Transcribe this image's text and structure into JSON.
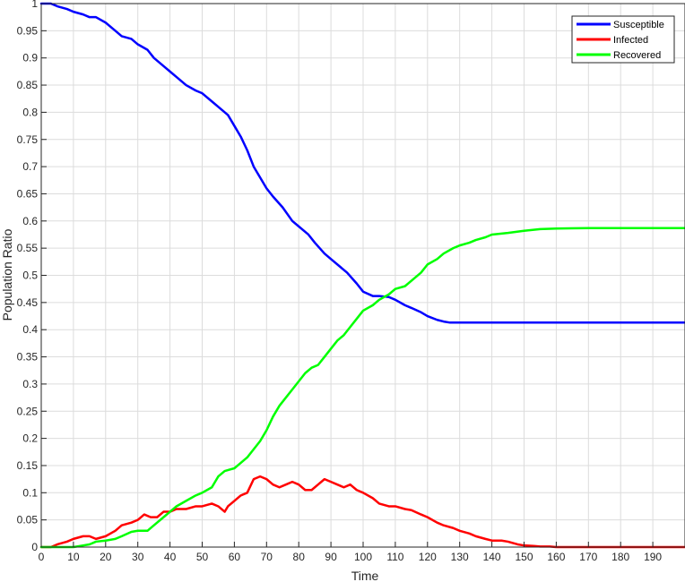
{
  "chart_data": {
    "type": "line",
    "title": "",
    "xlabel": "Time",
    "ylabel": "Population Ratio",
    "xlim": [
      0,
      200
    ],
    "ylim": [
      0,
      1
    ],
    "xticks": [
      0,
      10,
      20,
      30,
      40,
      50,
      60,
      70,
      80,
      90,
      100,
      110,
      120,
      130,
      140,
      150,
      160,
      170,
      180,
      190
    ],
    "yticks": [
      0,
      0.05,
      0.1,
      0.15,
      0.2,
      0.25,
      0.3,
      0.35,
      0.4,
      0.45,
      0.5,
      0.55,
      0.6,
      0.65,
      0.7,
      0.75,
      0.8,
      0.85,
      0.9,
      0.95,
      1
    ],
    "xtick_labels": [
      "0",
      "10",
      "20",
      "30",
      "40",
      "50",
      "60",
      "70",
      "80",
      "90",
      "100",
      "110",
      "120",
      "130",
      "140",
      "150",
      "160",
      "170",
      "180",
      "190"
    ],
    "ytick_labels": [
      "0",
      "0.05",
      "0.1",
      "0.15",
      "0.2",
      "0.25",
      "0.3",
      "0.35",
      "0.4",
      "0.45",
      "0.5",
      "0.55",
      "0.6",
      "0.65",
      "0.7",
      "0.75",
      "0.8",
      "0.85",
      "0.9",
      "0.95",
      "1"
    ],
    "grid": true,
    "legend_position": "top-right",
    "series": [
      {
        "name": "Susceptible",
        "color": "#0000ff",
        "x": [
          0,
          3,
          5,
          8,
          10,
          13,
          15,
          17,
          20,
          23,
          25,
          28,
          30,
          33,
          35,
          38,
          40,
          42,
          45,
          48,
          50,
          53,
          55,
          58,
          60,
          62,
          64,
          66,
          68,
          70,
          72,
          75,
          78,
          80,
          83,
          85,
          88,
          90,
          93,
          95,
          98,
          100,
          103,
          105,
          108,
          110,
          113,
          115,
          118,
          120,
          123,
          125,
          127,
          130,
          140,
          150,
          160,
          170,
          180,
          190,
          200
        ],
        "y": [
          1,
          1,
          0.995,
          0.99,
          0.985,
          0.98,
          0.975,
          0.975,
          0.965,
          0.95,
          0.94,
          0.935,
          0.925,
          0.915,
          0.9,
          0.885,
          0.875,
          0.865,
          0.85,
          0.84,
          0.835,
          0.82,
          0.81,
          0.795,
          0.775,
          0.755,
          0.73,
          0.7,
          0.68,
          0.66,
          0.645,
          0.625,
          0.6,
          0.59,
          0.575,
          0.56,
          0.54,
          0.53,
          0.515,
          0.505,
          0.485,
          0.47,
          0.462,
          0.462,
          0.46,
          0.455,
          0.445,
          0.44,
          0.432,
          0.425,
          0.418,
          0.415,
          0.413,
          0.413,
          0.413,
          0.413,
          0.413,
          0.413,
          0.413,
          0.413,
          0.413
        ]
      },
      {
        "name": "Infected",
        "color": "#ff0000",
        "x": [
          0,
          3,
          5,
          8,
          10,
          13,
          15,
          17,
          20,
          23,
          25,
          28,
          30,
          32,
          34,
          36,
          38,
          40,
          42,
          45,
          48,
          50,
          53,
          55,
          57,
          58,
          60,
          62,
          64,
          66,
          68,
          70,
          72,
          74,
          76,
          78,
          80,
          82,
          84,
          86,
          88,
          90,
          92,
          94,
          96,
          98,
          100,
          103,
          105,
          108,
          110,
          113,
          115,
          118,
          120,
          123,
          125,
          128,
          130,
          133,
          135,
          138,
          140,
          143,
          145,
          148,
          150,
          153,
          155,
          158,
          160,
          170,
          180,
          190,
          200
        ],
        "y": [
          0,
          0,
          0.005,
          0.01,
          0.015,
          0.02,
          0.02,
          0.015,
          0.02,
          0.03,
          0.04,
          0.045,
          0.05,
          0.06,
          0.055,
          0.055,
          0.065,
          0.065,
          0.07,
          0.07,
          0.075,
          0.075,
          0.08,
          0.075,
          0.065,
          0.075,
          0.085,
          0.095,
          0.1,
          0.125,
          0.13,
          0.125,
          0.115,
          0.11,
          0.115,
          0.12,
          0.115,
          0.105,
          0.105,
          0.115,
          0.125,
          0.12,
          0.115,
          0.11,
          0.115,
          0.105,
          0.1,
          0.09,
          0.08,
          0.075,
          0.075,
          0.07,
          0.068,
          0.06,
          0.055,
          0.045,
          0.04,
          0.035,
          0.03,
          0.025,
          0.02,
          0.015,
          0.012,
          0.012,
          0.01,
          0.005,
          0.003,
          0.002,
          0.001,
          0.001,
          0,
          0,
          0,
          0,
          0
        ]
      },
      {
        "name": "Recovered",
        "color": "#00ff00",
        "x": [
          0,
          5,
          10,
          13,
          15,
          17,
          20,
          23,
          25,
          28,
          30,
          33,
          35,
          38,
          40,
          42,
          45,
          48,
          50,
          53,
          55,
          57,
          60,
          62,
          64,
          66,
          68,
          70,
          72,
          74,
          76,
          78,
          80,
          82,
          84,
          86,
          88,
          90,
          92,
          94,
          96,
          98,
          100,
          103,
          105,
          108,
          110,
          113,
          115,
          118,
          120,
          123,
          125,
          128,
          130,
          133,
          135,
          138,
          140,
          145,
          150,
          155,
          160,
          170,
          180,
          190,
          200
        ],
        "y": [
          0,
          0,
          0,
          0.003,
          0.005,
          0.01,
          0.012,
          0.015,
          0.02,
          0.028,
          0.03,
          0.03,
          0.04,
          0.055,
          0.065,
          0.075,
          0.085,
          0.095,
          0.1,
          0.11,
          0.13,
          0.14,
          0.145,
          0.155,
          0.165,
          0.18,
          0.195,
          0.215,
          0.24,
          0.26,
          0.275,
          0.29,
          0.305,
          0.32,
          0.33,
          0.335,
          0.35,
          0.365,
          0.38,
          0.39,
          0.405,
          0.42,
          0.435,
          0.445,
          0.455,
          0.465,
          0.475,
          0.48,
          0.49,
          0.505,
          0.52,
          0.53,
          0.54,
          0.55,
          0.555,
          0.56,
          0.565,
          0.57,
          0.575,
          0.578,
          0.582,
          0.585,
          0.586,
          0.587,
          0.587,
          0.587,
          0.587
        ]
      }
    ]
  }
}
